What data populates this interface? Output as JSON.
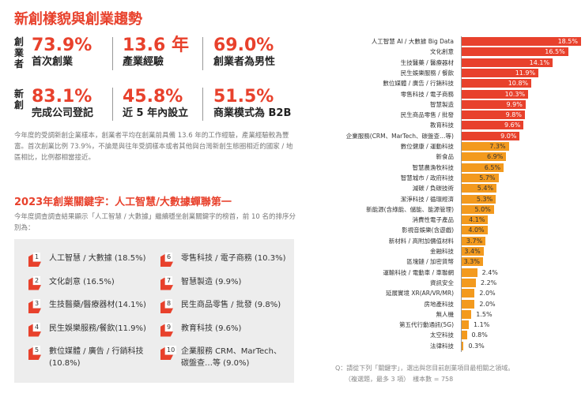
{
  "title": "新創樣貌與創業趨勢",
  "groups": {
    "founder": "創業者",
    "startup": "新創"
  },
  "stats": [
    {
      "value": "73.9%",
      "label": "首次創業"
    },
    {
      "value": "13.6 年",
      "label": "產業經驗"
    },
    {
      "value": "69.0%",
      "label": "創業者為男性"
    },
    {
      "value": "83.1%",
      "label": "完成公司登記"
    },
    {
      "value": "45.8%",
      "label": "近 5 年內設立"
    },
    {
      "value": "51.5%",
      "label": "商業模式為 B2B"
    }
  ],
  "paragraph": "今年度的受調新創企業樣本，創業者平均在創業前具備 13.6 年的工作經驗，產業經驗較為豐富。首次創業比例 73.9%，不論是與往年受調樣本或者其他與台灣新創生態圈相近的國家 / 地區相比，比例都相當接近。",
  "section2": {
    "title": "2023年創業關鍵字：人工智慧/大數據蟬聯第一",
    "intro": "今年度調查調查結果顯示「人工智慧 / 大數據」繼續穩坐創業關鍵字的榜首，前 10 名的排序分別為："
  },
  "top10": [
    {
      "n": "1",
      "t": "人工智慧 / 大數據 (18.5%)"
    },
    {
      "n": "2",
      "t": "文化創意 (16.5%)"
    },
    {
      "n": "3",
      "t": "生技醫藥/醫療器材(14.1%)"
    },
    {
      "n": "4",
      "t": "民生娛樂服務/餐飲(11.9%)"
    },
    {
      "n": "5",
      "t": "數位媒體 / 廣告 / 行銷科技 (10.8%)"
    },
    {
      "n": "6",
      "t": "零售科技 / 電子商務 (10.3%)"
    },
    {
      "n": "7",
      "t": "智慧製造 (9.9%)"
    },
    {
      "n": "8",
      "t": "民生商品零售 / 批發 (9.8%)"
    },
    {
      "n": "9",
      "t": "教育科技 (9.6%)"
    },
    {
      "n": "10",
      "t": "企業服務 CRM、MarTech、碳盤查…等 (9.0%)"
    }
  ],
  "chart_data": {
    "type": "bar",
    "orientation": "horizontal",
    "colors": {
      "top10": "#e8412c",
      "rest": "#f39a1e"
    },
    "categories": [
      "人工智慧 AI / 大數據 Big Data",
      "文化創意",
      "生技醫藥 / 醫療器材",
      "民生娛樂服務 / 餐飲",
      "數位媒體 / 廣告 / 行銷科技",
      "零售科技 / 電子商務",
      "智慧製造",
      "民生商品零售 / 批發",
      "教育科技",
      "企業服務(CRM、MarTech、碳盤查…等)",
      "數位健康 / 運動科技",
      "新食品",
      "智慧農漁牧科技",
      "智慧城市 / 政府科技",
      "減碳 / 負碳技術",
      "潔淨科技 / 循環經濟",
      "新能源(含綠能、儲能、能源管理)",
      "消費性電子產品",
      "影視音娛樂(含遊戲)",
      "新材料 / 高附加價值材料",
      "金融科技",
      "區塊鏈 / 加密貨幣",
      "運輸科技 / 電動車 / 車聯網",
      "資訊安全",
      "延展實境 XR(AR/VR/MR)",
      "房地產科技",
      "無人機",
      "第五代行動通訊(5G)",
      "太空科技",
      "法律科技"
    ],
    "values": [
      18.5,
      16.5,
      14.1,
      11.9,
      10.8,
      10.3,
      9.9,
      9.8,
      9.6,
      9.0,
      7.3,
      6.9,
      6.5,
      5.7,
      5.4,
      5.3,
      5.0,
      4.1,
      4.0,
      3.7,
      3.4,
      3.3,
      2.4,
      2.2,
      2.0,
      2.0,
      1.5,
      1.1,
      0.8,
      0.3
    ],
    "labels": [
      "18.5%",
      "16.5%",
      "14.1%",
      "11.9%",
      "10.8%",
      "10.3%",
      "9.9%",
      "9.8%",
      "9.6%",
      "9.0%",
      "7.3%",
      "6.9%",
      "6.5%",
      "5.7%",
      "5.4%",
      "5.3%",
      "5.0%",
      "4.1%",
      "4.0%",
      "3.7%",
      "3.4%",
      "3.3%",
      "2.4%",
      "2.2%",
      "2.0%",
      "2.0%",
      "1.5%",
      "1.1%",
      "0.8%",
      "0.3%"
    ]
  },
  "note": {
    "line1": "Q：請從下列「關鍵字」，選出與您目前創業項目最相關之領域。",
    "line2": "（複選題，最多 3 項）　樣本數 = 758"
  }
}
